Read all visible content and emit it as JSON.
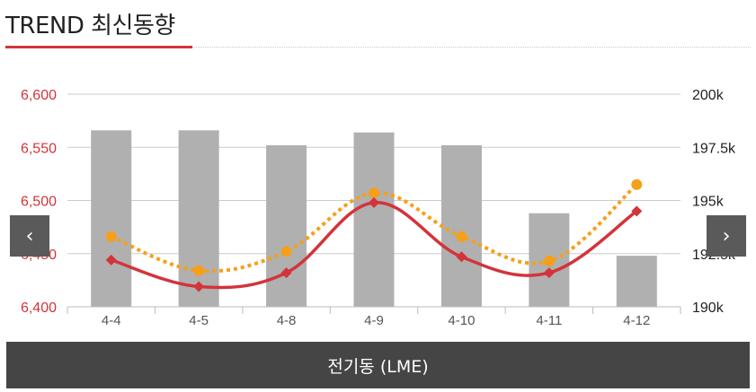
{
  "header": {
    "title": "TREND 최신동향"
  },
  "nav": {
    "prev_glyph": "‹",
    "next_glyph": "›"
  },
  "footer": {
    "label": "전기동 (LME)"
  },
  "colors": {
    "bar": "#b0b0b0",
    "line_price": "#d2343a",
    "line_stock": "#f5a01a",
    "left_axis": "#d2343a",
    "right_axis": "#222222",
    "grid": "#cccccc"
  },
  "chart_data": {
    "type": "bar",
    "categories": [
      "4-4",
      "4-5",
      "4-8",
      "4-9",
      "4-10",
      "4-11",
      "4-12"
    ],
    "left_axis": {
      "ylim": [
        6400,
        6600
      ],
      "ticks": [
        "6,400",
        "6,450",
        "6,500",
        "6,550",
        "6,600"
      ],
      "tick_values": [
        6400,
        6450,
        6500,
        6550,
        6600
      ]
    },
    "right_axis": {
      "ylim": [
        190000,
        200000
      ],
      "ticks": [
        "190k",
        "192.5k",
        "195k",
        "197.5k",
        "200k"
      ],
      "tick_values": [
        190000,
        192500,
        195000,
        197500,
        200000
      ]
    },
    "series": [
      {
        "type": "bar",
        "axis": "right",
        "values": [
          198300,
          198300,
          197600,
          198200,
          197600,
          194400,
          192400
        ]
      },
      {
        "type": "line",
        "axis": "left",
        "style": "solid",
        "marker": "diamond",
        "values": [
          6444,
          6419,
          6432,
          6498,
          6447,
          6432,
          6490
        ]
      },
      {
        "type": "line",
        "axis": "left",
        "style": "dotted",
        "marker": "circle",
        "values": [
          6466,
          6434,
          6452,
          6507,
          6466,
          6443,
          6515
        ]
      }
    ],
    "grid": true
  }
}
